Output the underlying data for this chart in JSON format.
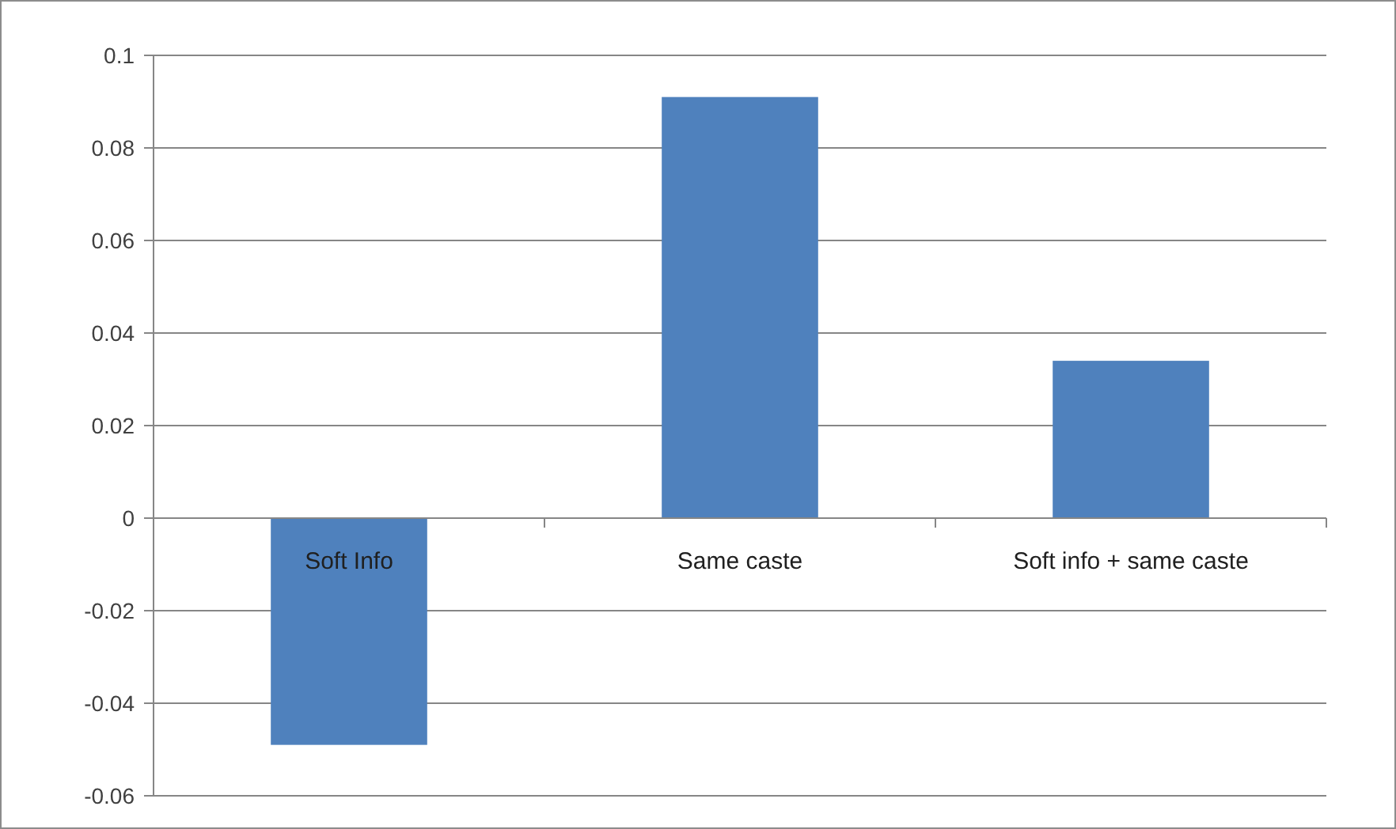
{
  "chart_data": {
    "type": "bar",
    "categories": [
      "Soft Info",
      "Same caste",
      "Soft info + same caste"
    ],
    "values": [
      -0.049,
      0.091,
      0.034
    ],
    "color": "#4f81bd",
    "ylim": [
      -0.06,
      0.1
    ],
    "yticks": [
      {
        "value": -0.06,
        "label": "-0.06"
      },
      {
        "value": -0.04,
        "label": "-0.04"
      },
      {
        "value": -0.02,
        "label": "-0.02"
      },
      0,
      {
        "value": 0.02,
        "label": "0.02"
      },
      {
        "value": 0.04,
        "label": "0.04"
      },
      {
        "value": 0.06,
        "label": "0.06"
      },
      {
        "value": 0.08,
        "label": "0.08"
      },
      {
        "value": 0.1,
        "label": "0.1"
      }
    ],
    "grid": "y"
  }
}
